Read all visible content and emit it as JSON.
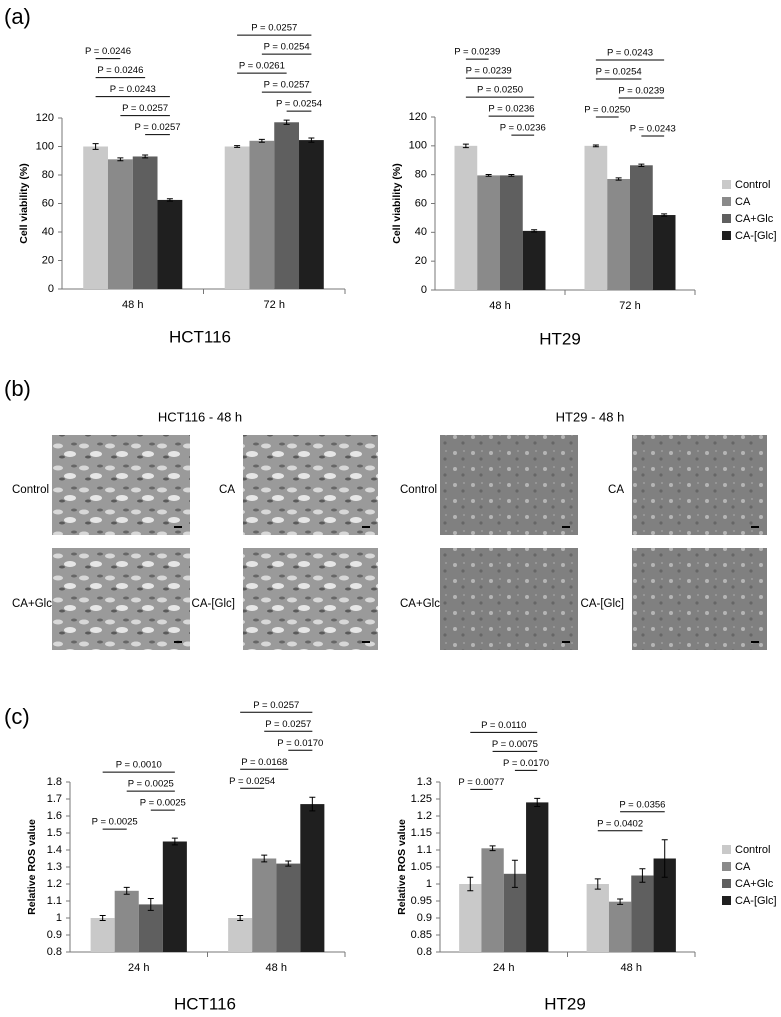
{
  "panel_labels": [
    "(a)",
    "(b)",
    "(c)"
  ],
  "micrographs": [
    {
      "title": "HCT116 - 48 h",
      "labels": [
        "Control",
        "CA",
        "CA+Glc",
        "CA-[Glc]"
      ]
    },
    {
      "title": "HT29 - 48 h",
      "labels": [
        "Control",
        "CA",
        "CA+Glc",
        "CA-[Glc]"
      ]
    }
  ],
  "chart_data": [
    {
      "type": "bar",
      "title": "HCT116",
      "y_label": "Cell viability (%)",
      "categories": [
        "48 h",
        "72 h"
      ],
      "ylim": [
        0,
        120
      ],
      "yticks": [
        0,
        20,
        40,
        60,
        80,
        100,
        120
      ],
      "series": [
        {
          "color": "#c9c9c9",
          "values": [
            100,
            100
          ],
          "errors": [
            2,
            0.6
          ]
        },
        {
          "color": "#8a8a8a",
          "values": [
            91,
            104
          ],
          "errors": [
            1,
            1
          ]
        },
        {
          "color": "#5f5f5f",
          "values": [
            93,
            117
          ],
          "errors": [
            1,
            1.5
          ]
        },
        {
          "color": "#1f1f1f",
          "values": [
            62.5,
            104.5
          ],
          "errors": [
            0.8,
            1.5
          ]
        }
      ],
      "brackets": [
        {
          "category": 0,
          "from": 2,
          "to": 3,
          "label": "P = 0.0257"
        },
        {
          "category": 0,
          "from": 1,
          "to": 3,
          "label": "P = 0.0257"
        },
        {
          "category": 0,
          "from": 0,
          "to": 3,
          "label": "P = 0.0243"
        },
        {
          "category": 0,
          "from": 0,
          "to": 2,
          "label": "P = 0.0246"
        },
        {
          "category": 0,
          "from": 0,
          "to": 1,
          "label": "P = 0.0246"
        },
        {
          "category": 1,
          "from": 2,
          "to": 3,
          "label": "P = 0.0254"
        },
        {
          "category": 1,
          "from": 1,
          "to": 3,
          "label": "P = 0.0257"
        },
        {
          "category": 1,
          "from": 0,
          "to": 2,
          "label": "P = 0.0261"
        },
        {
          "category": 1,
          "from": 1,
          "to": 3,
          "label": "P = 0.0254"
        },
        {
          "category": 1,
          "from": 0,
          "to": 3,
          "label": "P = 0.0257"
        }
      ]
    },
    {
      "type": "bar",
      "title": "HT29",
      "y_label": "Cell viability (%)",
      "categories": [
        "48 h",
        "72 h"
      ],
      "ylim": [
        0,
        120
      ],
      "yticks": [
        0,
        20,
        40,
        60,
        80,
        100,
        120
      ],
      "legend": "right",
      "series": [
        {
          "name": "Control",
          "color": "#c9c9c9",
          "values": [
            100,
            100
          ],
          "errors": [
            1.2,
            0.6
          ]
        },
        {
          "name": "CA",
          "color": "#8a8a8a",
          "values": [
            79.5,
            77
          ],
          "errors": [
            0.6,
            0.8
          ]
        },
        {
          "name": "CA+Glc",
          "color": "#5f5f5f",
          "values": [
            79.5,
            86.5
          ],
          "errors": [
            0.6,
            0.8
          ]
        },
        {
          "name": "CA-[Glc]",
          "color": "#1f1f1f",
          "values": [
            41,
            52
          ],
          "errors": [
            0.8,
            0.8
          ]
        }
      ],
      "brackets": [
        {
          "category": 0,
          "from": 2,
          "to": 3,
          "label": "P = 0.0236"
        },
        {
          "category": 0,
          "from": 1,
          "to": 3,
          "label": "P = 0.0236"
        },
        {
          "category": 0,
          "from": 0,
          "to": 3,
          "label": "P = 0.0250"
        },
        {
          "category": 0,
          "from": 0,
          "to": 2,
          "label": "P = 0.0239"
        },
        {
          "category": 0,
          "from": 0,
          "to": 1,
          "label": "P = 0.0239"
        },
        {
          "category": 1,
          "from": 2,
          "to": 3,
          "label": "P = 0.0243"
        },
        {
          "category": 1,
          "from": 0,
          "to": 1,
          "label": "P = 0.0250"
        },
        {
          "category": 1,
          "from": 1,
          "to": 3,
          "label": "P = 0.0239"
        },
        {
          "category": 1,
          "from": 0,
          "to": 2,
          "label": "P = 0.0254"
        },
        {
          "category": 1,
          "from": 0,
          "to": 3,
          "label": "P = 0.0243"
        }
      ]
    },
    {
      "type": "bar",
      "title": "HCT116",
      "y_label": "Relative ROS value",
      "categories": [
        "24 h",
        "48 h"
      ],
      "ylim": [
        0.8,
        1.8
      ],
      "yticks": [
        0.8,
        0.9,
        1,
        1.1,
        1.2,
        1.3,
        1.4,
        1.5,
        1.6,
        1.7,
        1.8
      ],
      "series": [
        {
          "color": "#c9c9c9",
          "values": [
            1.0,
            1.0
          ],
          "errors": [
            0.015,
            0.015
          ]
        },
        {
          "color": "#8a8a8a",
          "values": [
            1.16,
            1.35
          ],
          "errors": [
            0.02,
            0.02
          ]
        },
        {
          "color": "#5f5f5f",
          "values": [
            1.08,
            1.32
          ],
          "errors": [
            0.035,
            0.015
          ]
        },
        {
          "color": "#1f1f1f",
          "values": [
            1.45,
            1.67
          ],
          "errors": [
            0.02,
            0.04
          ]
        }
      ],
      "brackets": [
        {
          "category": 0,
          "from": 0,
          "to": 1,
          "label": "P = 0.0025"
        },
        {
          "category": 0,
          "from": 2,
          "to": 3,
          "label": "P = 0.0025"
        },
        {
          "category": 0,
          "from": 1,
          "to": 3,
          "label": "P = 0.0025"
        },
        {
          "category": 0,
          "from": 0,
          "to": 3,
          "label": "P = 0.0010"
        },
        {
          "category": 1,
          "from": 0,
          "to": 1,
          "label": "P = 0.0254"
        },
        {
          "category": 1,
          "from": 0,
          "to": 2,
          "label": "P = 0.0168"
        },
        {
          "category": 1,
          "from": 2,
          "to": 3,
          "label": "P = 0.0170"
        },
        {
          "category": 1,
          "from": 1,
          "to": 3,
          "label": "P = 0.0257"
        },
        {
          "category": 1,
          "from": 0,
          "to": 3,
          "label": "P = 0.0257"
        }
      ]
    },
    {
      "type": "bar",
      "title": "HT29",
      "y_label": "Relative ROS value",
      "categories": [
        "24 h",
        "48 h"
      ],
      "ylim": [
        0.8,
        1.3
      ],
      "yticks": [
        0.8,
        0.85,
        0.9,
        0.95,
        1,
        1.05,
        1.1,
        1.15,
        1.2,
        1.25,
        1.3
      ],
      "legend": "right",
      "series": [
        {
          "name": "Control",
          "color": "#c9c9c9",
          "values": [
            1.0,
            1.0
          ],
          "errors": [
            0.02,
            0.015
          ]
        },
        {
          "name": "CA",
          "color": "#8a8a8a",
          "values": [
            1.105,
            0.948
          ],
          "errors": [
            0.007,
            0.008
          ]
        },
        {
          "name": "CA+Glc",
          "color": "#5f5f5f",
          "values": [
            1.03,
            1.025
          ],
          "errors": [
            0.04,
            0.02
          ]
        },
        {
          "name": "CA-[Glc]",
          "color": "#1f1f1f",
          "values": [
            1.24,
            1.075
          ],
          "errors": [
            0.012,
            0.055
          ]
        }
      ],
      "brackets": [
        {
          "category": 0,
          "from": 0,
          "to": 1,
          "label": "P = 0.0077"
        },
        {
          "category": 0,
          "from": 2,
          "to": 3,
          "label": "P = 0.0170"
        },
        {
          "category": 0,
          "from": 1,
          "to": 3,
          "label": "P = 0.0075"
        },
        {
          "category": 0,
          "from": 0,
          "to": 3,
          "label": "P = 0.0110"
        },
        {
          "category": 1,
          "from": 0,
          "to": 2,
          "label": "P = 0.0402"
        },
        {
          "category": 1,
          "from": 1,
          "to": 3,
          "label": "P = 0.0356"
        }
      ]
    }
  ]
}
